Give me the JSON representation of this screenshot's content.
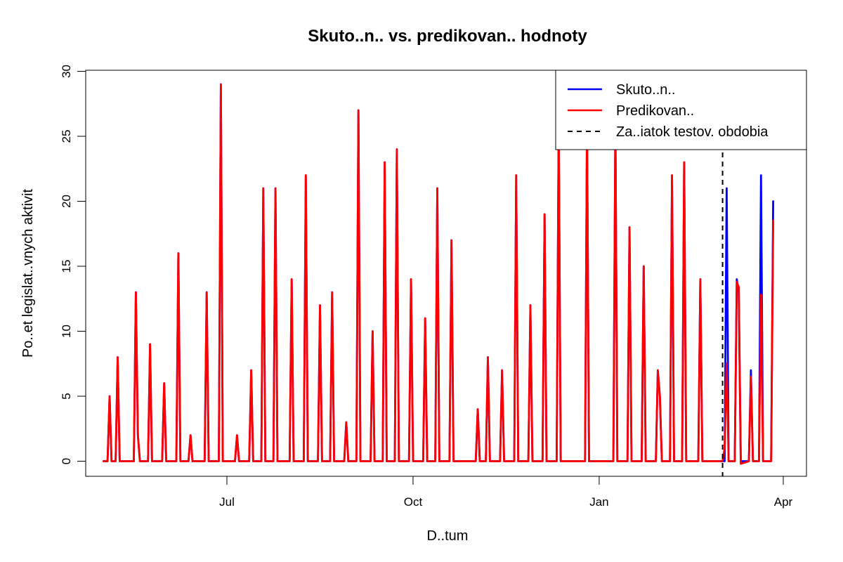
{
  "chart_data": {
    "type": "line",
    "title": "Skuto..n.. vs. predikovan.. hodnoty",
    "xlabel": "D..tum",
    "ylabel": "Po..et legislat..vnych aktivit",
    "x_start": "2023-05-01",
    "x_end": "2024-04-01",
    "ylim": [
      0,
      30
    ],
    "y_ticks": [
      0,
      5,
      10,
      15,
      20,
      25,
      30
    ],
    "x_ticks": [
      {
        "date": "2023-07-01",
        "label": "Jul"
      },
      {
        "date": "2023-10-01",
        "label": "Oct"
      },
      {
        "date": "2024-01-01",
        "label": "Jan"
      },
      {
        "date": "2024-04-01",
        "label": "Apr"
      }
    ],
    "test_start": "2024-03-02",
    "legend_position": "top-right",
    "grid": false,
    "series": [
      {
        "name": "Skuto..n..",
        "color": "#0000ff",
        "points": [
          [
            "2023-05-01",
            0
          ],
          [
            "2023-05-03",
            0
          ],
          [
            "2023-05-04",
            5
          ],
          [
            "2023-05-05",
            0
          ],
          [
            "2023-05-07",
            0
          ],
          [
            "2023-05-08",
            8
          ],
          [
            "2023-05-09",
            0
          ],
          [
            "2023-05-16",
            0
          ],
          [
            "2023-05-17",
            13
          ],
          [
            "2023-05-18",
            2
          ],
          [
            "2023-05-19",
            0
          ],
          [
            "2023-05-23",
            0
          ],
          [
            "2023-05-24",
            9
          ],
          [
            "2023-05-25",
            0
          ],
          [
            "2023-05-30",
            0
          ],
          [
            "2023-05-31",
            6
          ],
          [
            "2023-06-01",
            0
          ],
          [
            "2023-06-06",
            0
          ],
          [
            "2023-06-07",
            16
          ],
          [
            "2023-06-08",
            0
          ],
          [
            "2023-06-12",
            0
          ],
          [
            "2023-06-13",
            2
          ],
          [
            "2023-06-14",
            0
          ],
          [
            "2023-06-20",
            0
          ],
          [
            "2023-06-21",
            13
          ],
          [
            "2023-06-22",
            0
          ],
          [
            "2023-06-27",
            0
          ],
          [
            "2023-06-28",
            29
          ],
          [
            "2023-06-29",
            0
          ],
          [
            "2023-07-05",
            0
          ],
          [
            "2023-07-06",
            2
          ],
          [
            "2023-07-07",
            0
          ],
          [
            "2023-07-12",
            0
          ],
          [
            "2023-07-13",
            7
          ],
          [
            "2023-07-14",
            0
          ],
          [
            "2023-07-18",
            0
          ],
          [
            "2023-07-19",
            21
          ],
          [
            "2023-07-20",
            0
          ],
          [
            "2023-07-24",
            0
          ],
          [
            "2023-07-25",
            21
          ],
          [
            "2023-07-26",
            0
          ],
          [
            "2023-08-01",
            0
          ],
          [
            "2023-08-02",
            14
          ],
          [
            "2023-08-03",
            0
          ],
          [
            "2023-08-08",
            0
          ],
          [
            "2023-08-09",
            22
          ],
          [
            "2023-08-10",
            0
          ],
          [
            "2023-08-15",
            0
          ],
          [
            "2023-08-16",
            12
          ],
          [
            "2023-08-17",
            0
          ],
          [
            "2023-08-21",
            0
          ],
          [
            "2023-08-22",
            13
          ],
          [
            "2023-08-23",
            0
          ],
          [
            "2023-08-28",
            0
          ],
          [
            "2023-08-29",
            3
          ],
          [
            "2023-08-30",
            0
          ],
          [
            "2023-09-03",
            0
          ],
          [
            "2023-09-04",
            27
          ],
          [
            "2023-09-05",
            0
          ],
          [
            "2023-09-10",
            0
          ],
          [
            "2023-09-11",
            10
          ],
          [
            "2023-09-12",
            0
          ],
          [
            "2023-09-16",
            0
          ],
          [
            "2023-09-17",
            23
          ],
          [
            "2023-09-18",
            0
          ],
          [
            "2023-09-22",
            0
          ],
          [
            "2023-09-23",
            24
          ],
          [
            "2023-09-24",
            0
          ],
          [
            "2023-09-29",
            0
          ],
          [
            "2023-09-30",
            14
          ],
          [
            "2023-10-01",
            0
          ],
          [
            "2023-10-06",
            0
          ],
          [
            "2023-10-07",
            11
          ],
          [
            "2023-10-08",
            0
          ],
          [
            "2023-10-12",
            0
          ],
          [
            "2023-10-13",
            21
          ],
          [
            "2023-10-14",
            0
          ],
          [
            "2023-10-19",
            0
          ],
          [
            "2023-10-20",
            17
          ],
          [
            "2023-10-21",
            0
          ],
          [
            "2023-11-01",
            0
          ],
          [
            "2023-11-02",
            4
          ],
          [
            "2023-11-03",
            0
          ],
          [
            "2023-11-06",
            0
          ],
          [
            "2023-11-07",
            8
          ],
          [
            "2023-11-08",
            0
          ],
          [
            "2023-11-13",
            0
          ],
          [
            "2023-11-14",
            7
          ],
          [
            "2023-11-15",
            0
          ],
          [
            "2023-11-20",
            0
          ],
          [
            "2023-11-21",
            22
          ],
          [
            "2023-11-22",
            0
          ],
          [
            "2023-11-27",
            0
          ],
          [
            "2023-11-28",
            12
          ],
          [
            "2023-11-29",
            0
          ],
          [
            "2023-12-04",
            0
          ],
          [
            "2023-12-05",
            19
          ],
          [
            "2023-12-06",
            0
          ],
          [
            "2023-12-11",
            0
          ],
          [
            "2023-12-12",
            26
          ],
          [
            "2023-12-13",
            0
          ],
          [
            "2023-12-25",
            0
          ],
          [
            "2023-12-26",
            26
          ],
          [
            "2023-12-27",
            0
          ],
          [
            "2024-01-08",
            0
          ],
          [
            "2024-01-09",
            26
          ],
          [
            "2024-01-10",
            0
          ],
          [
            "2024-01-15",
            0
          ],
          [
            "2024-01-16",
            18
          ],
          [
            "2024-01-17",
            0
          ],
          [
            "2024-01-22",
            0
          ],
          [
            "2024-01-23",
            15
          ],
          [
            "2024-01-24",
            0
          ],
          [
            "2024-01-29",
            0
          ],
          [
            "2024-01-30",
            7
          ],
          [
            "2024-01-31",
            5
          ],
          [
            "2024-02-01",
            0
          ],
          [
            "2024-02-05",
            0
          ],
          [
            "2024-02-06",
            22
          ],
          [
            "2024-02-07",
            0
          ],
          [
            "2024-02-11",
            0
          ],
          [
            "2024-02-12",
            23
          ],
          [
            "2024-02-13",
            0
          ],
          [
            "2024-02-19",
            0
          ],
          [
            "2024-02-20",
            14
          ],
          [
            "2024-02-21",
            0
          ],
          [
            "2024-03-03",
            0
          ],
          [
            "2024-03-04",
            21
          ],
          [
            "2024-03-05",
            0
          ],
          [
            "2024-03-08",
            0
          ],
          [
            "2024-03-09",
            14
          ],
          [
            "2024-03-10",
            13
          ],
          [
            "2024-03-11",
            0
          ],
          [
            "2024-03-15",
            0
          ],
          [
            "2024-03-16",
            7
          ],
          [
            "2024-03-17",
            0
          ],
          [
            "2024-03-20",
            0
          ],
          [
            "2024-03-21",
            22
          ],
          [
            "2024-03-22",
            0
          ],
          [
            "2024-03-26",
            0
          ],
          [
            "2024-03-27",
            20
          ]
        ]
      },
      {
        "name": "Predikovan..",
        "color": "#ff0000",
        "points": [
          [
            "2023-05-01",
            0
          ],
          [
            "2023-05-03",
            0
          ],
          [
            "2023-05-04",
            5
          ],
          [
            "2023-05-05",
            0
          ],
          [
            "2023-05-07",
            0
          ],
          [
            "2023-05-08",
            8
          ],
          [
            "2023-05-09",
            0
          ],
          [
            "2023-05-16",
            0
          ],
          [
            "2023-05-17",
            13
          ],
          [
            "2023-05-18",
            2
          ],
          [
            "2023-05-19",
            0
          ],
          [
            "2023-05-23",
            0
          ],
          [
            "2023-05-24",
            9
          ],
          [
            "2023-05-25",
            0
          ],
          [
            "2023-05-30",
            0
          ],
          [
            "2023-05-31",
            6
          ],
          [
            "2023-06-01",
            0
          ],
          [
            "2023-06-06",
            0
          ],
          [
            "2023-06-07",
            16
          ],
          [
            "2023-06-08",
            0
          ],
          [
            "2023-06-12",
            0
          ],
          [
            "2023-06-13",
            2
          ],
          [
            "2023-06-14",
            0
          ],
          [
            "2023-06-20",
            0
          ],
          [
            "2023-06-21",
            13
          ],
          [
            "2023-06-22",
            0
          ],
          [
            "2023-06-27",
            0
          ],
          [
            "2023-06-28",
            29
          ],
          [
            "2023-06-29",
            0
          ],
          [
            "2023-07-05",
            0
          ],
          [
            "2023-07-06",
            2
          ],
          [
            "2023-07-07",
            0
          ],
          [
            "2023-07-12",
            0
          ],
          [
            "2023-07-13",
            7
          ],
          [
            "2023-07-14",
            0
          ],
          [
            "2023-07-18",
            0
          ],
          [
            "2023-07-19",
            21
          ],
          [
            "2023-07-20",
            0
          ],
          [
            "2023-07-24",
            0
          ],
          [
            "2023-07-25",
            21
          ],
          [
            "2023-07-26",
            0
          ],
          [
            "2023-08-01",
            0
          ],
          [
            "2023-08-02",
            14
          ],
          [
            "2023-08-03",
            0
          ],
          [
            "2023-08-08",
            0
          ],
          [
            "2023-08-09",
            22
          ],
          [
            "2023-08-10",
            0
          ],
          [
            "2023-08-15",
            0
          ],
          [
            "2023-08-16",
            12
          ],
          [
            "2023-08-17",
            0
          ],
          [
            "2023-08-21",
            0
          ],
          [
            "2023-08-22",
            13
          ],
          [
            "2023-08-23",
            0
          ],
          [
            "2023-08-28",
            0
          ],
          [
            "2023-08-29",
            3
          ],
          [
            "2023-08-30",
            0
          ],
          [
            "2023-09-03",
            0
          ],
          [
            "2023-09-04",
            27
          ],
          [
            "2023-09-05",
            0
          ],
          [
            "2023-09-10",
            0
          ],
          [
            "2023-09-11",
            10
          ],
          [
            "2023-09-12",
            0
          ],
          [
            "2023-09-16",
            0
          ],
          [
            "2023-09-17",
            23
          ],
          [
            "2023-09-18",
            0
          ],
          [
            "2023-09-22",
            0
          ],
          [
            "2023-09-23",
            24
          ],
          [
            "2023-09-24",
            0
          ],
          [
            "2023-09-29",
            0
          ],
          [
            "2023-09-30",
            14
          ],
          [
            "2023-10-01",
            0
          ],
          [
            "2023-10-06",
            0
          ],
          [
            "2023-10-07",
            11
          ],
          [
            "2023-10-08",
            0
          ],
          [
            "2023-10-12",
            0
          ],
          [
            "2023-10-13",
            21
          ],
          [
            "2023-10-14",
            0
          ],
          [
            "2023-10-19",
            0
          ],
          [
            "2023-10-20",
            17
          ],
          [
            "2023-10-21",
            0
          ],
          [
            "2023-11-01",
            0
          ],
          [
            "2023-11-02",
            4
          ],
          [
            "2023-11-03",
            0
          ],
          [
            "2023-11-06",
            0
          ],
          [
            "2023-11-07",
            8
          ],
          [
            "2023-11-08",
            0
          ],
          [
            "2023-11-13",
            0
          ],
          [
            "2023-11-14",
            7
          ],
          [
            "2023-11-15",
            0
          ],
          [
            "2023-11-20",
            0
          ],
          [
            "2023-11-21",
            22
          ],
          [
            "2023-11-22",
            0
          ],
          [
            "2023-11-27",
            0
          ],
          [
            "2023-11-28",
            12
          ],
          [
            "2023-11-29",
            0
          ],
          [
            "2023-12-04",
            0
          ],
          [
            "2023-12-05",
            19
          ],
          [
            "2023-12-06",
            0
          ],
          [
            "2023-12-11",
            0
          ],
          [
            "2023-12-12",
            26
          ],
          [
            "2023-12-13",
            0
          ],
          [
            "2023-12-25",
            0
          ],
          [
            "2023-12-26",
            26
          ],
          [
            "2023-12-27",
            0
          ],
          [
            "2024-01-08",
            0
          ],
          [
            "2024-01-09",
            26
          ],
          [
            "2024-01-10",
            0
          ],
          [
            "2024-01-15",
            0
          ],
          [
            "2024-01-16",
            18
          ],
          [
            "2024-01-17",
            0
          ],
          [
            "2024-01-22",
            0
          ],
          [
            "2024-01-23",
            15
          ],
          [
            "2024-01-24",
            0
          ],
          [
            "2024-01-29",
            0
          ],
          [
            "2024-01-30",
            7
          ],
          [
            "2024-01-31",
            5
          ],
          [
            "2024-02-01",
            0
          ],
          [
            "2024-02-05",
            0
          ],
          [
            "2024-02-06",
            22
          ],
          [
            "2024-02-07",
            0
          ],
          [
            "2024-02-11",
            0
          ],
          [
            "2024-02-12",
            23
          ],
          [
            "2024-02-13",
            0
          ],
          [
            "2024-02-19",
            0
          ],
          [
            "2024-02-20",
            14
          ],
          [
            "2024-02-21",
            0
          ],
          [
            "2024-03-02",
            0
          ],
          [
            "2024-03-03",
            1
          ],
          [
            "2024-03-04",
            7.5
          ],
          [
            "2024-03-05",
            0
          ],
          [
            "2024-03-08",
            0
          ],
          [
            "2024-03-09",
            13.8
          ],
          [
            "2024-03-10",
            13.4
          ],
          [
            "2024-03-11",
            -0.2
          ],
          [
            "2024-03-15",
            0
          ],
          [
            "2024-03-16",
            6.5
          ],
          [
            "2024-03-17",
            0
          ],
          [
            "2024-03-20",
            0
          ],
          [
            "2024-03-21",
            12.8
          ],
          [
            "2024-03-22",
            0
          ],
          [
            "2024-03-26",
            0
          ],
          [
            "2024-03-27",
            18.5
          ]
        ]
      }
    ],
    "legend": [
      {
        "label": "Skuto..n..",
        "color": "#0000ff",
        "style": "solid"
      },
      {
        "label": "Predikovan..",
        "color": "#ff0000",
        "style": "solid"
      },
      {
        "label": "Za..iatok testov. obdobia",
        "color": "#000000",
        "style": "dashed"
      }
    ]
  }
}
